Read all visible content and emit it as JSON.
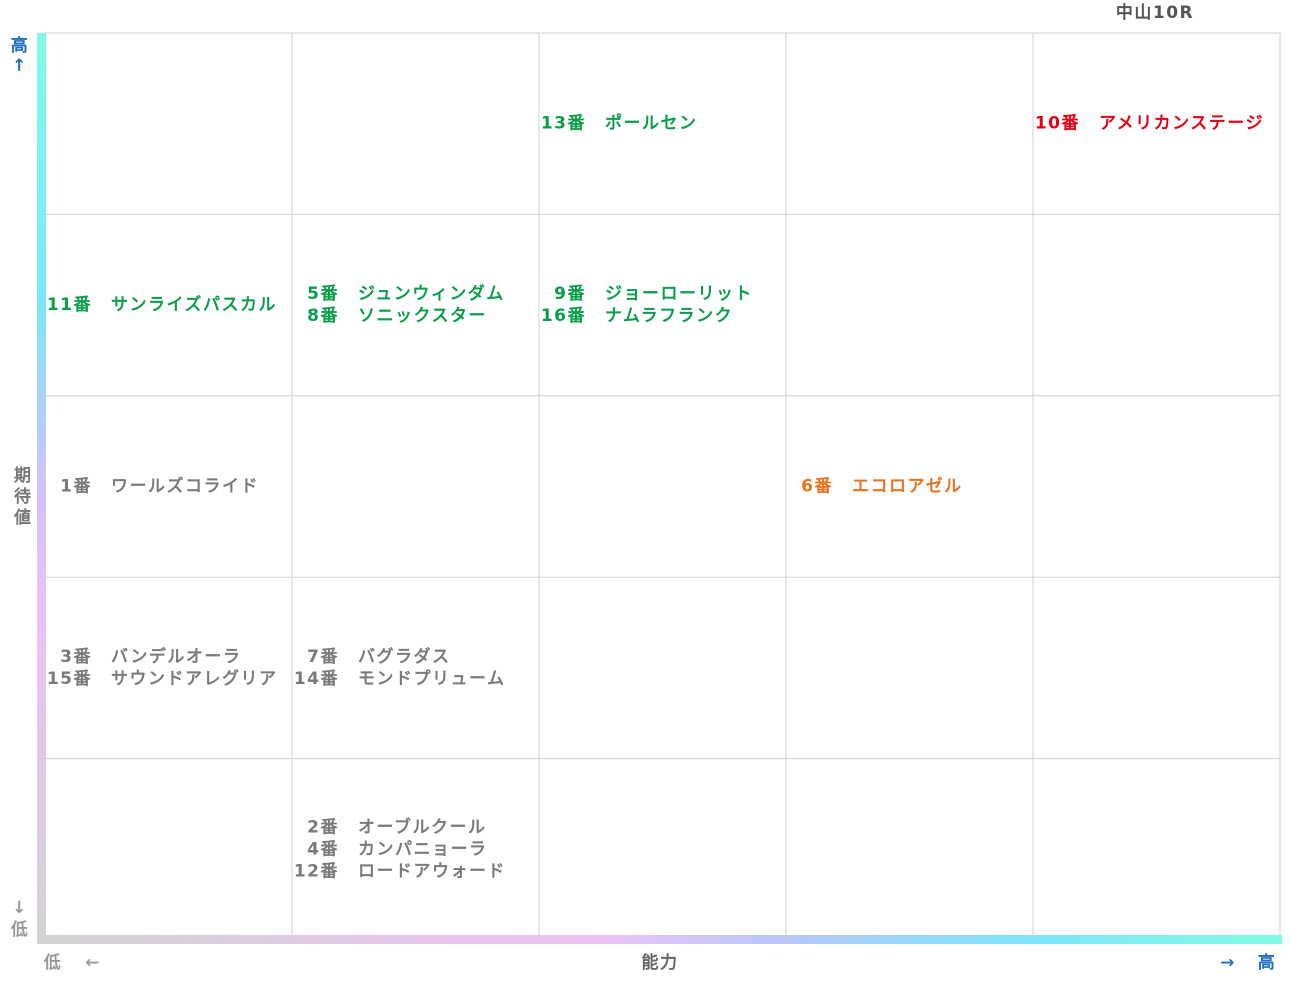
{
  "title": "中山10R",
  "y_axis": {
    "label": "期待値",
    "high": "高",
    "high_arrow": "↑",
    "low": "低",
    "low_arrow": "↓"
  },
  "x_axis": {
    "label": "能力",
    "low": "低",
    "low_arrow": "←",
    "high": "高",
    "high_arrow": "→"
  },
  "grid": {
    "rows": [
      [
        [],
        [],
        [
          {
            "num": "13番",
            "name": "ポールセン",
            "color": "#0a9e4a"
          }
        ],
        [],
        [
          {
            "num": "10番",
            "name": "アメリカンステージ",
            "color": "#e60012"
          }
        ]
      ],
      [
        [
          {
            "num": "11番",
            "name": "サンライズパスカル",
            "color": "#0a9e4a"
          }
        ],
        [
          {
            "num": "5番",
            "name": "ジュンウィンダム",
            "color": "#0a9e4a"
          },
          {
            "num": "8番",
            "name": "ソニックスター",
            "color": "#0a9e4a"
          }
        ],
        [
          {
            "num": "9番",
            "name": "ジョーローリット",
            "color": "#0a9e4a"
          },
          {
            "num": "16番",
            "name": "ナムラフランク",
            "color": "#0a9e4a"
          }
        ],
        [],
        []
      ],
      [
        [
          {
            "num": "1番",
            "name": "ワールズコライド",
            "color": "#7a7a7a"
          }
        ],
        [],
        [],
        [
          {
            "num": "6番",
            "name": "エコロアゼル",
            "color": "#e8731e"
          }
        ],
        []
      ],
      [
        [
          {
            "num": "3番",
            "name": "バンデルオーラ",
            "color": "#7a7a7a"
          },
          {
            "num": "15番",
            "name": "サウンドアレグリア",
            "color": "#7a7a7a"
          }
        ],
        [
          {
            "num": "7番",
            "name": "バグラダス",
            "color": "#7a7a7a"
          },
          {
            "num": "14番",
            "name": "モンドプリューム",
            "color": "#7a7a7a"
          }
        ],
        [],
        [],
        []
      ],
      [
        [],
        [
          {
            "num": "2番",
            "name": "オーブルクール",
            "color": "#7a7a7a"
          },
          {
            "num": "4番",
            "name": "カンパニョーラ",
            "color": "#7a7a7a"
          },
          {
            "num": "12番",
            "name": "ロードアウォード",
            "color": "#7a7a7a"
          }
        ],
        [],
        [],
        []
      ]
    ]
  }
}
